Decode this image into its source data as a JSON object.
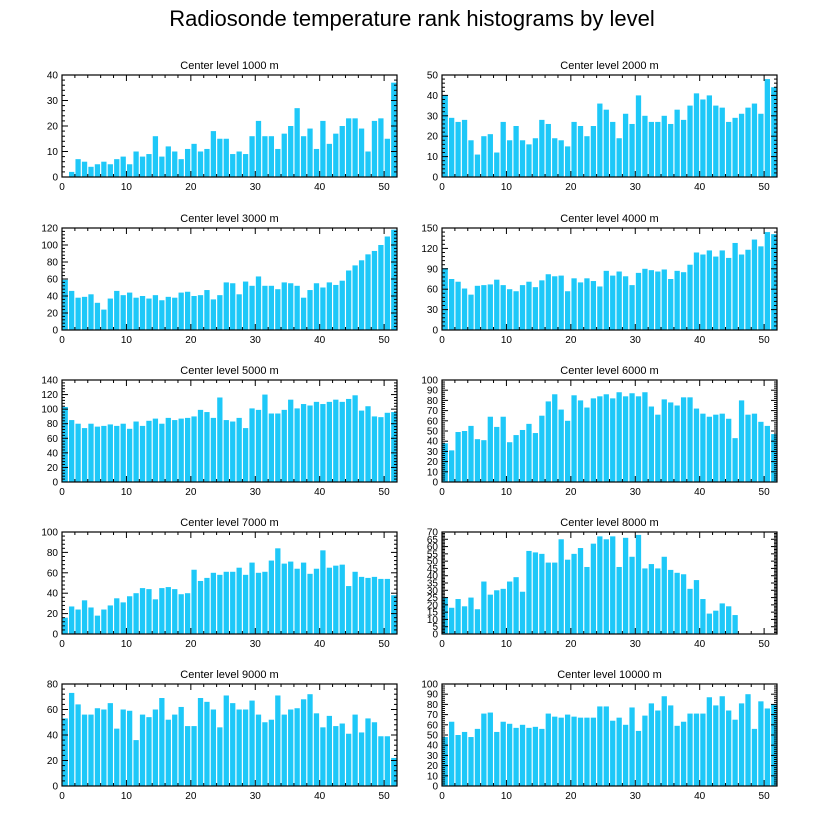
{
  "page_title": "Radiosonde temperature rank histograms by level",
  "style": {
    "bar_color": "#1ec8f8",
    "axis_color": "#000000"
  },
  "chart_data": [
    {
      "type": "bar",
      "title": "Center level 1000 m",
      "xlim": [
        0,
        52
      ],
      "ylim": [
        0,
        40
      ],
      "xticks": [
        0,
        10,
        20,
        30,
        40,
        50
      ],
      "yticks": [
        0,
        10,
        20,
        30,
        40
      ],
      "x": [
        0,
        1,
        2,
        3,
        4,
        5,
        6,
        7,
        8,
        9,
        10,
        11,
        12,
        13,
        14,
        15,
        16,
        17,
        18,
        19,
        20,
        21,
        22,
        23,
        24,
        25,
        26,
        27,
        28,
        29,
        30,
        31,
        32,
        33,
        34,
        35,
        36,
        37,
        38,
        39,
        40,
        41,
        42,
        43,
        44,
        45,
        46,
        47,
        48,
        49,
        50,
        51
      ],
      "values": [
        0,
        2,
        7,
        6,
        4,
        5,
        6,
        5,
        7,
        8,
        5,
        10,
        8,
        9,
        16,
        8,
        12,
        10,
        7,
        11,
        13,
        10,
        11,
        18,
        15,
        15,
        9,
        10,
        9,
        16,
        22,
        16,
        16,
        11,
        17,
        20,
        27,
        16,
        19,
        11,
        22,
        13,
        17,
        20,
        23,
        23,
        19,
        10,
        22,
        23,
        15,
        37
      ]
    },
    {
      "type": "bar",
      "title": "Center level 2000 m",
      "xlim": [
        0,
        52
      ],
      "ylim": [
        0,
        50
      ],
      "xticks": [
        0,
        10,
        20,
        30,
        40,
        50
      ],
      "yticks": [
        0,
        10,
        20,
        30,
        40,
        50
      ],
      "x": [
        0,
        1,
        2,
        3,
        4,
        5,
        6,
        7,
        8,
        9,
        10,
        11,
        12,
        13,
        14,
        15,
        16,
        17,
        18,
        19,
        20,
        21,
        22,
        23,
        24,
        25,
        26,
        27,
        28,
        29,
        30,
        31,
        32,
        33,
        34,
        35,
        36,
        37,
        38,
        39,
        40,
        41,
        42,
        43,
        44,
        45,
        46,
        47,
        48,
        49,
        50,
        51
      ],
      "values": [
        40,
        29,
        27,
        28,
        18,
        11,
        20,
        21,
        12,
        27,
        18,
        25,
        18,
        16,
        19,
        28,
        26,
        19,
        18,
        15,
        27,
        25,
        20,
        25,
        36,
        33,
        27,
        19,
        31,
        26,
        40,
        30,
        27,
        27,
        30,
        26,
        33,
        28,
        35,
        41,
        38,
        40,
        35,
        34,
        27,
        29,
        31,
        34,
        36,
        31,
        48,
        44
      ]
    },
    {
      "type": "bar",
      "title": "Center level 3000 m",
      "xlim": [
        0,
        52
      ],
      "ylim": [
        0,
        120
      ],
      "xticks": [
        0,
        10,
        20,
        30,
        40,
        50
      ],
      "yticks": [
        0,
        20,
        40,
        60,
        80,
        100,
        120
      ],
      "x": [
        0,
        1,
        2,
        3,
        4,
        5,
        6,
        7,
        8,
        9,
        10,
        11,
        12,
        13,
        14,
        15,
        16,
        17,
        18,
        19,
        20,
        21,
        22,
        23,
        24,
        25,
        26,
        27,
        28,
        29,
        30,
        31,
        32,
        33,
        34,
        35,
        36,
        37,
        38,
        39,
        40,
        41,
        42,
        43,
        44,
        45,
        46,
        47,
        48,
        49,
        50,
        51
      ],
      "values": [
        59,
        46,
        38,
        39,
        42,
        32,
        24,
        37,
        46,
        41,
        44,
        38,
        40,
        37,
        41,
        35,
        39,
        38,
        44,
        45,
        40,
        41,
        47,
        36,
        41,
        56,
        55,
        42,
        57,
        52,
        63,
        52,
        52,
        48,
        56,
        55,
        52,
        38,
        47,
        55,
        50,
        56,
        53,
        58,
        70,
        76,
        82,
        89,
        93,
        100,
        110,
        118
      ]
    },
    {
      "type": "bar",
      "title": "Center level 4000 m",
      "xlim": [
        0,
        52
      ],
      "ylim": [
        0,
        150
      ],
      "xticks": [
        0,
        10,
        20,
        30,
        40,
        50
      ],
      "yticks": [
        0,
        30,
        60,
        90,
        120,
        150
      ],
      "x": [
        0,
        1,
        2,
        3,
        4,
        5,
        6,
        7,
        8,
        9,
        10,
        11,
        12,
        13,
        14,
        15,
        16,
        17,
        18,
        19,
        20,
        21,
        22,
        23,
        24,
        25,
        26,
        27,
        28,
        29,
        30,
        31,
        32,
        33,
        34,
        35,
        36,
        37,
        38,
        39,
        40,
        41,
        42,
        43,
        44,
        45,
        46,
        47,
        48,
        49,
        50,
        51
      ],
      "values": [
        91,
        75,
        71,
        61,
        52,
        65,
        66,
        67,
        74,
        66,
        60,
        57,
        66,
        71,
        63,
        73,
        82,
        79,
        80,
        57,
        76,
        70,
        76,
        72,
        64,
        87,
        80,
        86,
        79,
        66,
        84,
        90,
        88,
        86,
        89,
        75,
        87,
        85,
        96,
        114,
        111,
        117,
        108,
        117,
        106,
        128,
        111,
        118,
        133,
        123,
        144,
        141
      ]
    },
    {
      "type": "bar",
      "title": "Center level 5000 m",
      "xlim": [
        0,
        52
      ],
      "ylim": [
        0,
        140
      ],
      "xticks": [
        0,
        10,
        20,
        30,
        40,
        50
      ],
      "yticks": [
        0,
        20,
        40,
        60,
        80,
        100,
        120,
        140
      ],
      "x": [
        0,
        1,
        2,
        3,
        4,
        5,
        6,
        7,
        8,
        9,
        10,
        11,
        12,
        13,
        14,
        15,
        16,
        17,
        18,
        19,
        20,
        21,
        22,
        23,
        24,
        25,
        26,
        27,
        28,
        29,
        30,
        31,
        32,
        33,
        34,
        35,
        36,
        37,
        38,
        39,
        40,
        41,
        42,
        43,
        44,
        45,
        46,
        47,
        48,
        49,
        50,
        51
      ],
      "values": [
        103,
        85,
        80,
        74,
        80,
        76,
        77,
        79,
        77,
        80,
        73,
        83,
        77,
        84,
        87,
        80,
        88,
        85,
        87,
        88,
        90,
        99,
        96,
        88,
        116,
        85,
        83,
        88,
        74,
        101,
        99,
        120,
        94,
        94,
        99,
        113,
        101,
        107,
        105,
        110,
        107,
        110,
        113,
        110,
        114,
        119,
        98,
        104,
        90,
        89,
        95,
        96
      ]
    },
    {
      "type": "bar",
      "title": "Center level 6000 m",
      "xlim": [
        0,
        52
      ],
      "ylim": [
        0,
        100
      ],
      "xticks": [
        0,
        10,
        20,
        30,
        40,
        50
      ],
      "yticks": [
        0,
        10,
        20,
        30,
        40,
        50,
        60,
        70,
        80,
        90,
        100
      ],
      "x": [
        0,
        1,
        2,
        3,
        4,
        5,
        6,
        7,
        8,
        9,
        10,
        11,
        12,
        13,
        14,
        15,
        16,
        17,
        18,
        19,
        20,
        21,
        22,
        23,
        24,
        25,
        26,
        27,
        28,
        29,
        30,
        31,
        32,
        33,
        34,
        35,
        36,
        37,
        38,
        39,
        40,
        41,
        42,
        43,
        44,
        45,
        46,
        47,
        48,
        49,
        50,
        51
      ],
      "values": [
        38,
        31,
        49,
        50,
        55,
        42,
        41,
        64,
        54,
        64,
        39,
        46,
        51,
        57,
        48,
        65,
        79,
        86,
        71,
        60,
        85,
        80,
        73,
        82,
        84,
        86,
        82,
        88,
        84,
        87,
        84,
        88,
        74,
        66,
        81,
        78,
        75,
        83,
        83,
        72,
        67,
        64,
        66,
        67,
        62,
        43,
        80,
        66,
        67,
        59,
        55,
        47
      ]
    },
    {
      "type": "bar",
      "title": "Center level 7000 m",
      "xlim": [
        0,
        52
      ],
      "ylim": [
        0,
        100
      ],
      "xticks": [
        0,
        10,
        20,
        30,
        40,
        50
      ],
      "yticks": [
        0,
        20,
        40,
        60,
        80,
        100
      ],
      "x": [
        0,
        1,
        2,
        3,
        4,
        5,
        6,
        7,
        8,
        9,
        10,
        11,
        12,
        13,
        14,
        15,
        16,
        17,
        18,
        19,
        20,
        21,
        22,
        23,
        24,
        25,
        26,
        27,
        28,
        29,
        30,
        31,
        32,
        33,
        34,
        35,
        36,
        37,
        38,
        39,
        40,
        41,
        42,
        43,
        44,
        45,
        46,
        47,
        48,
        49,
        50,
        51
      ],
      "values": [
        16,
        27,
        24,
        33,
        26,
        18,
        24,
        28,
        35,
        31,
        37,
        40,
        45,
        44,
        34,
        45,
        46,
        44,
        39,
        40,
        63,
        52,
        55,
        60,
        58,
        61,
        61,
        65,
        58,
        70,
        60,
        61,
        72,
        84,
        69,
        71,
        64,
        70,
        59,
        64,
        82,
        65,
        67,
        68,
        47,
        61,
        56,
        55,
        56,
        54,
        54,
        38
      ]
    },
    {
      "type": "bar",
      "title": "Center level 8000 m",
      "xlim": [
        0,
        52
      ],
      "ylim": [
        0,
        70
      ],
      "xticks": [
        0,
        10,
        20,
        30,
        40,
        50
      ],
      "yticks": [
        0,
        5,
        10,
        15,
        20,
        25,
        30,
        35,
        40,
        45,
        50,
        55,
        60,
        65,
        70
      ],
      "x": [
        0,
        1,
        2,
        3,
        4,
        5,
        6,
        7,
        8,
        9,
        10,
        11,
        12,
        13,
        14,
        15,
        16,
        17,
        18,
        19,
        20,
        21,
        22,
        23,
        24,
        25,
        26,
        27,
        28,
        29,
        30,
        31,
        32,
        33,
        34,
        35,
        36,
        37,
        38,
        39,
        40,
        41,
        42,
        43,
        44,
        45,
        46,
        47,
        48,
        49,
        50,
        51
      ],
      "values": [
        25,
        18,
        24,
        19,
        25,
        17,
        36,
        27,
        30,
        31,
        36,
        39,
        29,
        57,
        56,
        55,
        49,
        49,
        65,
        51,
        55,
        59,
        46,
        62,
        67,
        65,
        67,
        46,
        66,
        53,
        68,
        45,
        48,
        45,
        53,
        44,
        42,
        41,
        31,
        37,
        24,
        14,
        16,
        21,
        19,
        13,
        0,
        0,
        0,
        0,
        0,
        0
      ]
    },
    {
      "type": "bar",
      "title": "Center level 9000 m",
      "xlim": [
        0,
        52
      ],
      "ylim": [
        0,
        80
      ],
      "xticks": [
        0,
        10,
        20,
        30,
        40,
        50
      ],
      "yticks": [
        0,
        20,
        40,
        60,
        80
      ],
      "x": [
        0,
        1,
        2,
        3,
        4,
        5,
        6,
        7,
        8,
        9,
        10,
        11,
        12,
        13,
        14,
        15,
        16,
        17,
        18,
        19,
        20,
        21,
        22,
        23,
        24,
        25,
        26,
        27,
        28,
        29,
        30,
        31,
        32,
        33,
        34,
        35,
        36,
        37,
        38,
        39,
        40,
        41,
        42,
        43,
        44,
        45,
        46,
        47,
        48,
        49,
        50,
        51
      ],
      "values": [
        53,
        73,
        64,
        56,
        56,
        61,
        60,
        65,
        45,
        60,
        59,
        36,
        56,
        54,
        60,
        69,
        52,
        56,
        62,
        47,
        47,
        69,
        66,
        60,
        46,
        71,
        65,
        60,
        60,
        67,
        56,
        50,
        52,
        71,
        56,
        60,
        61,
        68,
        72,
        57,
        46,
        55,
        47,
        49,
        41,
        56,
        42,
        53,
        50,
        39,
        39,
        22
      ]
    },
    {
      "type": "bar",
      "title": "Center level 10000 m",
      "xlim": [
        0,
        52
      ],
      "ylim": [
        0,
        100
      ],
      "xticks": [
        0,
        10,
        20,
        30,
        40,
        50
      ],
      "yticks": [
        0,
        10,
        20,
        30,
        40,
        50,
        60,
        70,
        80,
        90,
        100
      ],
      "x": [
        0,
        1,
        2,
        3,
        4,
        5,
        6,
        7,
        8,
        9,
        10,
        11,
        12,
        13,
        14,
        15,
        16,
        17,
        18,
        19,
        20,
        21,
        22,
        23,
        24,
        25,
        26,
        27,
        28,
        29,
        30,
        31,
        32,
        33,
        34,
        35,
        36,
        37,
        38,
        39,
        40,
        41,
        42,
        43,
        44,
        45,
        46,
        47,
        48,
        49,
        50,
        51
      ],
      "values": [
        48,
        63,
        50,
        53,
        48,
        56,
        71,
        72,
        53,
        63,
        61,
        57,
        60,
        57,
        58,
        56,
        71,
        68,
        67,
        70,
        68,
        67,
        67,
        67,
        78,
        78,
        64,
        67,
        60,
        77,
        54,
        69,
        81,
        74,
        88,
        79,
        59,
        63,
        71,
        71,
        71,
        87,
        79,
        88,
        74,
        65,
        81,
        90,
        56,
        83,
        76,
        80
      ]
    }
  ]
}
